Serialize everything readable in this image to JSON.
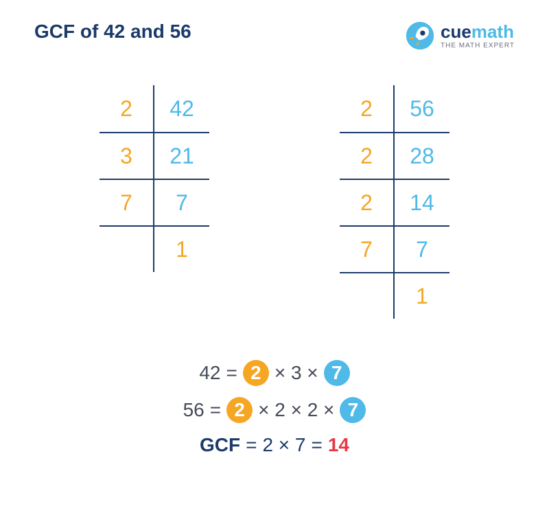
{
  "colors": {
    "navy": "#1b3a6b",
    "orange": "#f5a623",
    "skyblue": "#4fb9e8",
    "red": "#e63946",
    "darktext": "#454a58",
    "gray": "#6b6f7a"
  },
  "title": "GCF of 42 and 56",
  "logo": {
    "brand_cue": "cue",
    "brand_math": "math",
    "tagline": "THE MATH EXPERT"
  },
  "table_left": {
    "rows": [
      {
        "factor": "2",
        "value": "42",
        "border_top": false
      },
      {
        "factor": "3",
        "value": "21",
        "border_top": true
      },
      {
        "factor": "7",
        "value": "7",
        "border_top": true
      },
      {
        "factor": "",
        "value": "1",
        "border_top": true
      }
    ]
  },
  "table_right": {
    "rows": [
      {
        "factor": "2",
        "value": "56",
        "border_top": false
      },
      {
        "factor": "2",
        "value": "28",
        "border_top": true
      },
      {
        "factor": "2",
        "value": "14",
        "border_top": true
      },
      {
        "factor": "7",
        "value": "7",
        "border_top": true
      },
      {
        "factor": "",
        "value": "1",
        "border_top": true
      }
    ]
  },
  "equations": {
    "eq1": {
      "lhs": "42",
      "eq": " = ",
      "c2": "2",
      "t1": " × 3 × ",
      "c7": "7"
    },
    "eq2": {
      "lhs": "56",
      "eq": " = ",
      "c2": "2",
      "t1": " × 2 × 2 × ",
      "c7": "7"
    },
    "gcf": {
      "label": "GCF",
      "eq": " = ",
      "expr": "2 × 7",
      "eq2": " = ",
      "result": "14"
    }
  }
}
